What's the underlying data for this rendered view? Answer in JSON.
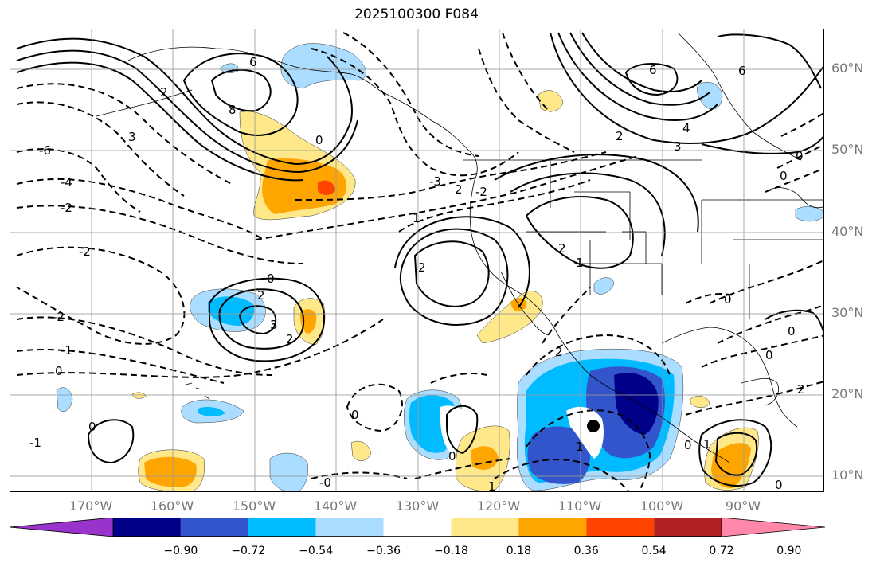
{
  "title": "2025100300 F084",
  "lat_labels": [
    "60°N",
    "50°N",
    "40°N",
    "30°N",
    "20°N",
    "10°N"
  ],
  "lon_labels": [
    "170°W",
    "160°W",
    "150°W",
    "140°W",
    "130°W",
    "120°W",
    "110°W",
    "100°W",
    "90°W"
  ],
  "colorbar": {
    "colors": [
      "#9933cc",
      "#000088",
      "#3355cc",
      "#00bbff",
      "#aaddff",
      "#ffffff",
      "#ffe88a",
      "#ffa500",
      "#ff4400",
      "#b22222",
      "#ff88aa"
    ],
    "ticks": [
      "−0.90",
      "−0.72",
      "−0.54",
      "−0.36",
      "−0.18",
      "0.18",
      "0.36",
      "0.54",
      "0.72",
      "0.90"
    ]
  },
  "contour_labels": {
    "c01": "6",
    "c02": "8",
    "c03": "2",
    "c04": "3",
    "c05": "-6",
    "c06": "-4",
    "c07": "-2",
    "c08": "-2",
    "c09": "-2",
    "c10": "-1",
    "c11": "0",
    "c12": "0",
    "c13": "2",
    "c14": "3",
    "c15": "2",
    "c16": "0",
    "c17": "-3",
    "c18": "2",
    "c19": "1",
    "c20": "-2",
    "c21": "2",
    "c22": "1",
    "c23": "2",
    "c24": "6",
    "c25": "2",
    "c26": "3",
    "c27": "4",
    "c28": "6",
    "c29": "0",
    "c30": "0",
    "c31": "0",
    "c32": "2",
    "c33": "0",
    "c34": "1",
    "c35": "0",
    "c36": "0",
    "c37": "1",
    "c38": "0",
    "c39": "1",
    "c40": "2",
    "c41": "0",
    "c42": "-0",
    "c43": "0",
    "c44": "-1",
    "c45": "0"
  }
}
